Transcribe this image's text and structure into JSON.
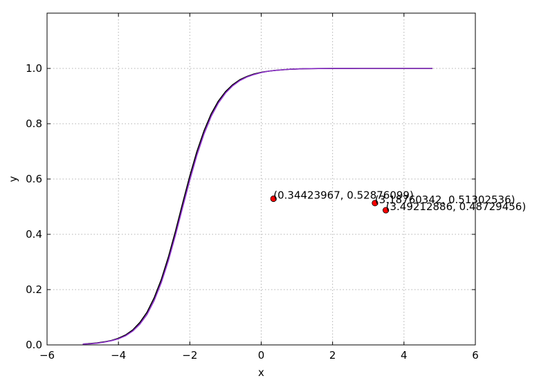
{
  "chart_data": {
    "type": "line",
    "xlabel": "x",
    "ylabel": "y",
    "xlim": [
      -6,
      6
    ],
    "ylim": [
      0,
      1.2
    ],
    "xticks": [
      -6,
      -4,
      -2,
      0,
      2,
      4,
      6
    ],
    "xtick_labels": [
      "−6",
      "−4",
      "−2",
      "0",
      "2",
      "4",
      "6"
    ],
    "yticks": [
      0.0,
      0.2,
      0.4,
      0.6,
      0.8,
      1.0
    ],
    "ytick_labels": [
      "0.0",
      "0.2",
      "0.4",
      "0.6",
      "0.8",
      "1.0"
    ],
    "grid": true,
    "series": [
      {
        "color": "#000000",
        "x": [
          -5.0,
          -4.8,
          -4.6,
          -4.4,
          -4.2,
          -4.0,
          -3.8,
          -3.6,
          -3.4,
          -3.2,
          -3.0,
          -2.8,
          -2.6,
          -2.4,
          -2.2,
          -2.0,
          -1.8,
          -1.6,
          -1.4,
          -1.2,
          -1.0,
          -0.8,
          -0.6,
          -0.4,
          -0.2,
          0.0,
          0.2,
          0.4,
          0.6,
          0.8,
          1.0,
          1.2,
          1.6,
          2.0,
          2.4,
          2.8,
          3.2,
          3.6,
          4.0,
          4.4,
          4.8
        ],
        "y": [
          0.003,
          0.005,
          0.007,
          0.011,
          0.016,
          0.024,
          0.036,
          0.054,
          0.081,
          0.118,
          0.17,
          0.236,
          0.318,
          0.412,
          0.513,
          0.611,
          0.7,
          0.775,
          0.836,
          0.882,
          0.916,
          0.941,
          0.959,
          0.971,
          0.98,
          0.986,
          0.99,
          0.993,
          0.995,
          0.997,
          0.998,
          0.999,
          0.9995,
          0.9998,
          0.9999,
          1.0,
          1.0,
          1.0,
          1.0,
          1.0,
          1.0
        ]
      },
      {
        "color": "#8b2fc9",
        "x": [
          -5.0,
          -4.8,
          -4.6,
          -4.4,
          -4.2,
          -4.0,
          -3.8,
          -3.6,
          -3.4,
          -3.2,
          -3.0,
          -2.8,
          -2.6,
          -2.4,
          -2.2,
          -2.0,
          -1.8,
          -1.6,
          -1.4,
          -1.2,
          -1.0,
          -0.8,
          -0.6,
          -0.4,
          -0.2,
          0.0,
          0.2,
          0.4,
          0.6,
          0.8,
          1.0,
          1.2,
          1.6,
          2.0,
          2.4,
          2.8,
          3.2,
          3.6,
          4.0,
          4.4,
          4.8
        ],
        "y": [
          0.003,
          0.004,
          0.006,
          0.01,
          0.015,
          0.022,
          0.033,
          0.05,
          0.075,
          0.11,
          0.16,
          0.225,
          0.305,
          0.398,
          0.498,
          0.596,
          0.687,
          0.764,
          0.827,
          0.875,
          0.911,
          0.937,
          0.956,
          0.969,
          0.978,
          0.985,
          0.99,
          0.993,
          0.995,
          0.997,
          0.998,
          0.999,
          0.9995,
          0.9998,
          0.9999,
          1.0,
          1.0,
          1.0,
          1.0,
          1.0,
          1.0
        ]
      }
    ],
    "points": [
      {
        "x": 0.34423967,
        "y": 0.52876099,
        "label": "(0.34423967, 0.52876099)",
        "color": "#ff0000"
      },
      {
        "x": 3.18760342,
        "y": 0.51302536,
        "label": "(3.18760342, 0.51302536)",
        "color": "#ff0000"
      },
      {
        "x": 3.49212886,
        "y": 0.48729456,
        "label": "(3.49212886, 0.48729456)",
        "color": "#ff0000"
      }
    ]
  }
}
